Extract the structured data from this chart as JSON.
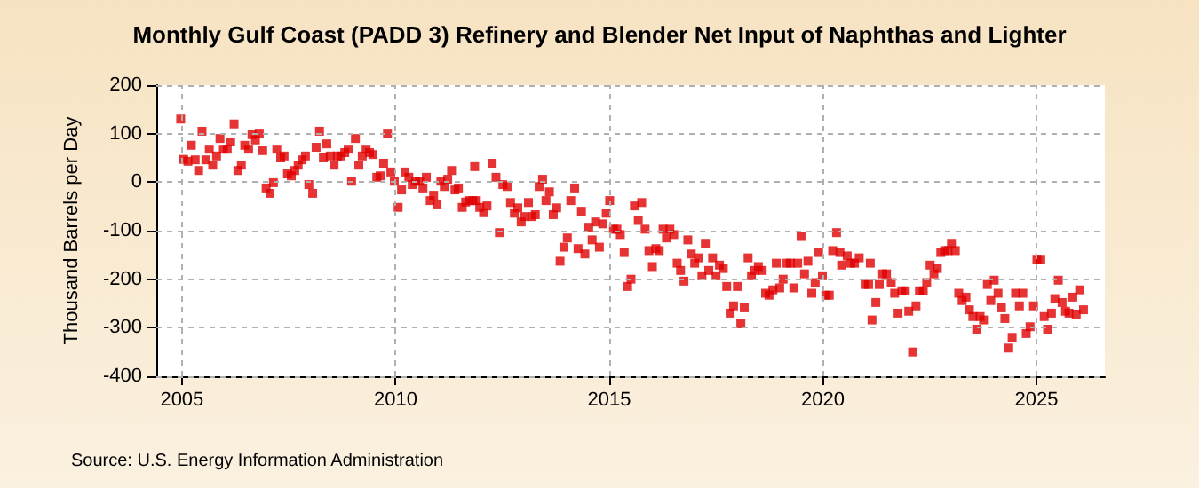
{
  "chart_data": {
    "type": "scatter",
    "title": "Monthly Gulf Coast (PADD 3) Refinery and Blender Net Input of Naphthas and Lighter",
    "ylabel": "Thousand Barrels per Day",
    "annotations": [
      "Source: U.S. Energy Information Administration"
    ],
    "xlim": [
      2004.4,
      2026.6
    ],
    "xticks": [
      2005,
      2010,
      2015,
      2020,
      2025
    ],
    "ylim": [
      -400,
      200
    ],
    "yticks": [
      -400,
      -300,
      -200,
      -100,
      0,
      100,
      200
    ],
    "grid": true,
    "marker": "square",
    "series": [
      {
        "color": "#e00000",
        "x": [
          2004.97,
          2005.04,
          2005.14,
          2005.22,
          2005.31,
          2005.39,
          2005.47,
          2005.56,
          2005.64,
          2005.72,
          2005.81,
          2005.89,
          2005.97,
          2006.06,
          2006.14,
          2006.22,
          2006.31,
          2006.39,
          2006.47,
          2006.56,
          2006.64,
          2006.72,
          2006.81,
          2006.89,
          2006.97,
          2007.06,
          2007.14,
          2007.22,
          2007.31,
          2007.39,
          2007.47,
          2007.56,
          2007.64,
          2007.72,
          2007.81,
          2007.89,
          2007.97,
          2008.06,
          2008.14,
          2008.22,
          2008.31,
          2008.39,
          2008.47,
          2008.56,
          2008.64,
          2008.72,
          2008.81,
          2008.89,
          2008.97,
          2009.06,
          2009.14,
          2009.22,
          2009.31,
          2009.39,
          2009.47,
          2009.56,
          2009.64,
          2009.72,
          2009.81,
          2009.89,
          2009.97,
          2010.06,
          2010.14,
          2010.22,
          2010.31,
          2010.39,
          2010.47,
          2010.56,
          2010.64,
          2010.72,
          2010.81,
          2010.89,
          2010.97,
          2011.06,
          2011.14,
          2011.22,
          2011.31,
          2011.39,
          2011.47,
          2011.56,
          2011.64,
          2011.72,
          2011.81,
          2011.85,
          2011.89,
          2011.97,
          2012.06,
          2012.14,
          2012.26,
          2012.35,
          2012.43,
          2012.51,
          2012.61,
          2012.69,
          2012.78,
          2012.86,
          2012.94,
          2013.02,
          2013.11,
          2013.19,
          2013.27,
          2013.36,
          2013.44,
          2013.52,
          2013.6,
          2013.69,
          2013.77,
          2013.85,
          2013.94,
          2014.02,
          2014.1,
          2014.19,
          2014.27,
          2014.35,
          2014.43,
          2014.52,
          2014.6,
          2014.68,
          2014.77,
          2014.85,
          2014.93,
          2015.01,
          2015.1,
          2015.18,
          2015.26,
          2015.35,
          2015.43,
          2015.51,
          2015.59,
          2015.68,
          2015.76,
          2015.84,
          2015.93,
          2016.01,
          2016.09,
          2016.17,
          2016.26,
          2016.34,
          2016.42,
          2016.51,
          2016.59,
          2016.67,
          2016.75,
          2016.84,
          2016.92,
          2017.0,
          2017.09,
          2017.17,
          2017.25,
          2017.33,
          2017.42,
          2017.5,
          2017.58,
          2017.67,
          2017.75,
          2017.83,
          2017.91,
          2018.0,
          2018.08,
          2018.16,
          2018.25,
          2018.33,
          2018.41,
          2018.49,
          2018.58,
          2018.66,
          2018.74,
          2018.83,
          2018.91,
          2018.99,
          2019.07,
          2019.16,
          2019.24,
          2019.32,
          2019.41,
          2019.49,
          2019.57,
          2019.65,
          2019.74,
          2019.82,
          2019.9,
          2019.99,
          2020.07,
          2020.15,
          2020.23,
          2020.32,
          2020.4,
          2020.44,
          2020.57,
          2020.65,
          2020.74,
          2020.85,
          2020.99,
          2021.07,
          2021.11,
          2021.15,
          2021.24,
          2021.32,
          2021.4,
          2021.49,
          2021.6,
          2021.68,
          2021.76,
          2021.85,
          2021.93,
          2022.01,
          2022.1,
          2022.18,
          2022.26,
          2022.35,
          2022.43,
          2022.51,
          2022.6,
          2022.68,
          2022.76,
          2022.85,
          2022.93,
          2023.01,
          2023.1,
          2023.18,
          2023.26,
          2023.35,
          2023.43,
          2023.51,
          2023.6,
          2023.68,
          2023.76,
          2023.85,
          2023.93,
          2024.01,
          2024.1,
          2024.18,
          2024.26,
          2024.35,
          2024.43,
          2024.51,
          2024.6,
          2024.68,
          2024.76,
          2024.85,
          2024.93,
          2025.01,
          2025.1,
          2025.18,
          2025.26,
          2025.35,
          2025.43,
          2025.51,
          2025.6,
          2025.68,
          2025.76,
          2025.85,
          2025.93,
          2026.01,
          2026.1
        ],
        "values": [
          130,
          47,
          43,
          76,
          46,
          24,
          105,
          46,
          68,
          35,
          54,
          90,
          68,
          68,
          83,
          120,
          24,
          35,
          76,
          68,
          98,
          87,
          101,
          65,
          -12,
          -23,
          -1,
          68,
          50,
          54,
          17,
          13,
          24,
          35,
          46,
          54,
          -5,
          -23,
          72,
          105,
          50,
          79,
          54,
          35,
          54,
          54,
          61,
          68,
          2,
          90,
          35,
          54,
          68,
          61,
          57,
          10,
          13,
          39,
          101,
          21,
          2,
          -52,
          -16,
          21,
          10,
          -5,
          2,
          2,
          -12,
          10,
          -38,
          -27,
          -45,
          2,
          -9,
          6,
          24,
          -16,
          -12,
          -52,
          -41,
          -38,
          -38,
          32,
          -38,
          -52,
          -63,
          -49,
          39,
          10,
          -104,
          -5,
          -9,
          -42,
          -64,
          -53,
          -82,
          -71,
          -42,
          -71,
          -67,
          -9,
          6,
          -38,
          -20,
          -67,
          -53,
          -163,
          -134,
          -115,
          -38,
          -12,
          -137,
          -60,
          -148,
          -93,
          -119,
          -82,
          -134,
          -86,
          -64,
          -38,
          -97,
          -97,
          -108,
          -145,
          -215,
          -200,
          -49,
          -79,
          -42,
          -97,
          -141,
          -174,
          -137,
          -141,
          -97,
          -115,
          -97,
          -108,
          -167,
          -182,
          -204,
          -119,
          -148,
          -167,
          -156,
          -193,
          -126,
          -182,
          -156,
          -193,
          -171,
          -178,
          -215,
          -270,
          -255,
          -215,
          -292,
          -259,
          -156,
          -193,
          -182,
          -174,
          -182,
          -229,
          -233,
          -222,
          -167,
          -218,
          -200,
          -167,
          -167,
          -218,
          -167,
          -112,
          -189,
          -163,
          -229,
          -207,
          -145,
          -193,
          -233,
          -233,
          -141,
          -104,
          -145,
          -171,
          -152,
          -167,
          -167,
          -156,
          -211,
          -211,
          -167,
          -284,
          -248,
          -211,
          -189,
          -189,
          -207,
          -229,
          -270,
          -224,
          -224,
          -266,
          -350,
          -255,
          -224,
          -224,
          -207,
          -171,
          -189,
          -178,
          -145,
          -141,
          -141,
          -126,
          -141,
          -229,
          -244,
          -237,
          -263,
          -277,
          -303,
          -277,
          -284,
          -211,
          -244,
          -202,
          -229,
          -259,
          -281,
          -342,
          -320,
          -229,
          -255,
          -229,
          -312,
          -298,
          -255,
          -159,
          -159,
          -277,
          -303,
          -270,
          -240,
          -202,
          -248,
          -266,
          -270,
          -237,
          -272,
          -222,
          -263
        ]
      }
    ]
  }
}
